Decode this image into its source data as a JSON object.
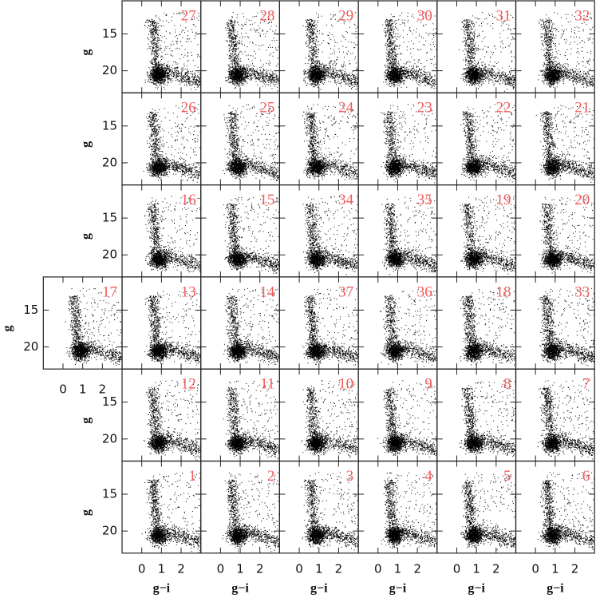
{
  "chart_data": {
    "type": "scatter-grid",
    "xlabel": "g−i",
    "ylabel": "g",
    "xlim": [
      -1,
      3
    ],
    "ylim": [
      23,
      10.5
    ],
    "xticks": [
      0,
      1,
      2
    ],
    "yticks": [
      15,
      20
    ],
    "rows": [
      [
        "27",
        "28",
        "29",
        "30",
        "31",
        "32"
      ],
      [
        "26",
        "25",
        "24",
        "23",
        "22",
        "21"
      ],
      [
        "16",
        "15",
        "34",
        "35",
        "19",
        "20"
      ],
      [
        "13",
        "14",
        "37",
        "36",
        "18",
        "33"
      ],
      [
        "12",
        "11",
        "10",
        "9",
        "8",
        "7"
      ],
      [
        "1",
        "2",
        "3",
        "4",
        "5",
        "6"
      ]
    ],
    "extra_panel": "17"
  }
}
